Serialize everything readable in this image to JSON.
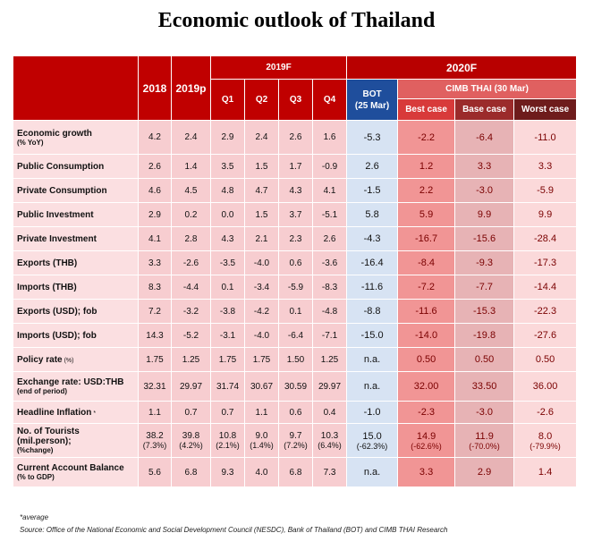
{
  "title": "Economic outlook of Thailand",
  "header": {
    "y2018": "2018",
    "y2019p": "2019p",
    "f2019": "2019F",
    "quarters": [
      "Q1",
      "Q2",
      "Q3",
      "Q4"
    ],
    "f2020": "2020F",
    "bot_line1": "BOT",
    "bot_line2": "(25 Mar)",
    "cimb": "CIMB THAI (30 Mar)",
    "best": "Best case",
    "base": "Base case",
    "worst": "Worst case"
  },
  "rows": [
    {
      "label": "Economic growth",
      "sub": "(% YoY)",
      "v": [
        "4.2",
        "2.4",
        "2.9",
        "2.4",
        "2.6",
        "1.6",
        "-5.3",
        "-2.2",
        "-6.4",
        "-11.0"
      ]
    },
    {
      "label": "Public Consumption",
      "v": [
        "2.6",
        "1.4",
        "3.5",
        "1.5",
        "1.7",
        "-0.9",
        "2.6",
        "1.2",
        "3.3",
        "3.3"
      ]
    },
    {
      "label": "Private Consumption",
      "v": [
        "4.6",
        "4.5",
        "4.8",
        "4.7",
        "4.3",
        "4.1",
        "-1.5",
        "2.2",
        "-3.0",
        "-5.9"
      ]
    },
    {
      "label": "Public Investment",
      "v": [
        "2.9",
        "0.2",
        "0.0",
        "1.5",
        "3.7",
        "-5.1",
        "5.8",
        "5.9",
        "9.9",
        "9.9"
      ]
    },
    {
      "label": "Private Investment",
      "v": [
        "4.1",
        "2.8",
        "4.3",
        "2.1",
        "2.3",
        "2.6",
        "-4.3",
        "-16.7",
        "-15.6",
        "-28.4"
      ]
    },
    {
      "label": "Exports (THB)",
      "v": [
        "3.3",
        "-2.6",
        "-3.5",
        "-4.0",
        "0.6",
        "-3.6",
        "-16.4",
        "-8.4",
        "-9.3",
        "-17.3"
      ]
    },
    {
      "label": "Imports (THB)",
      "v": [
        "8.3",
        "-4.4",
        "0.1",
        "-3.4",
        "-5.9",
        "-8.3",
        "-11.6",
        "-7.2",
        "-7.7",
        "-14.4"
      ]
    },
    {
      "label": "Exports (USD); fob",
      "v": [
        "7.2",
        "-3.2",
        "-3.8",
        "-4.2",
        "0.1",
        "-4.8",
        "-8.8",
        "-11.6",
        "-15.3",
        "-22.3"
      ]
    },
    {
      "label": "Imports (USD); fob",
      "v": [
        "14.3",
        "-5.2",
        "-3.1",
        "-4.0",
        "-6.4",
        "-7.1",
        "-15.0",
        "-14.0",
        "-19.8",
        "-27.6"
      ]
    },
    {
      "label": "Policy rate",
      "label_small": "(%)",
      "v": [
        "1.75",
        "1.25",
        "1.75",
        "1.75",
        "1.50",
        "1.25",
        "n.a.",
        "0.50",
        "0.50",
        "0.50"
      ]
    },
    {
      "label": "Exchange rate: USD:THB",
      "sub": "(end of period)",
      "v": [
        "32.31",
        "29.97",
        "31.74",
        "30.67",
        "30.59",
        "29.97",
        "n.a.",
        "32.00",
        "33.50",
        "36.00"
      ]
    },
    {
      "label": "Headline Inflation",
      "label_small": "*",
      "v": [
        "1.1",
        "0.7",
        "0.7",
        "1.1",
        "0.6",
        "0.4",
        "-1.0",
        "-2.3",
        "-3.0",
        "-2.6"
      ]
    },
    {
      "label": "No. of Tourists (mil.person);",
      "sub": "(%change)",
      "v": [
        "38.2",
        "39.8",
        "10.8",
        "9.0",
        "9.7",
        "10.3",
        "15.0",
        "14.9",
        "11.9",
        "8.0"
      ],
      "sv": [
        "(7.3%)",
        "(4.2%)",
        "(2.1%)",
        "(1.4%)",
        "(7.2%)",
        "(6.4%)",
        "(-62.3%)",
        "(-62.6%)",
        "(-70.0%)",
        "(-79.9%)"
      ]
    },
    {
      "label": "Current Account Balance",
      "sub": "(% to GDP)",
      "v": [
        "5.6",
        "6.8",
        "9.3",
        "4.0",
        "6.8",
        "7.3",
        "n.a.",
        "3.3",
        "2.9",
        "1.4"
      ]
    }
  ],
  "footnote": "*average",
  "source": "Source: Office of the National Economic and Social Development Council (NESDC), Bank of Thailand (BOT) and CIMB THAI Research"
}
